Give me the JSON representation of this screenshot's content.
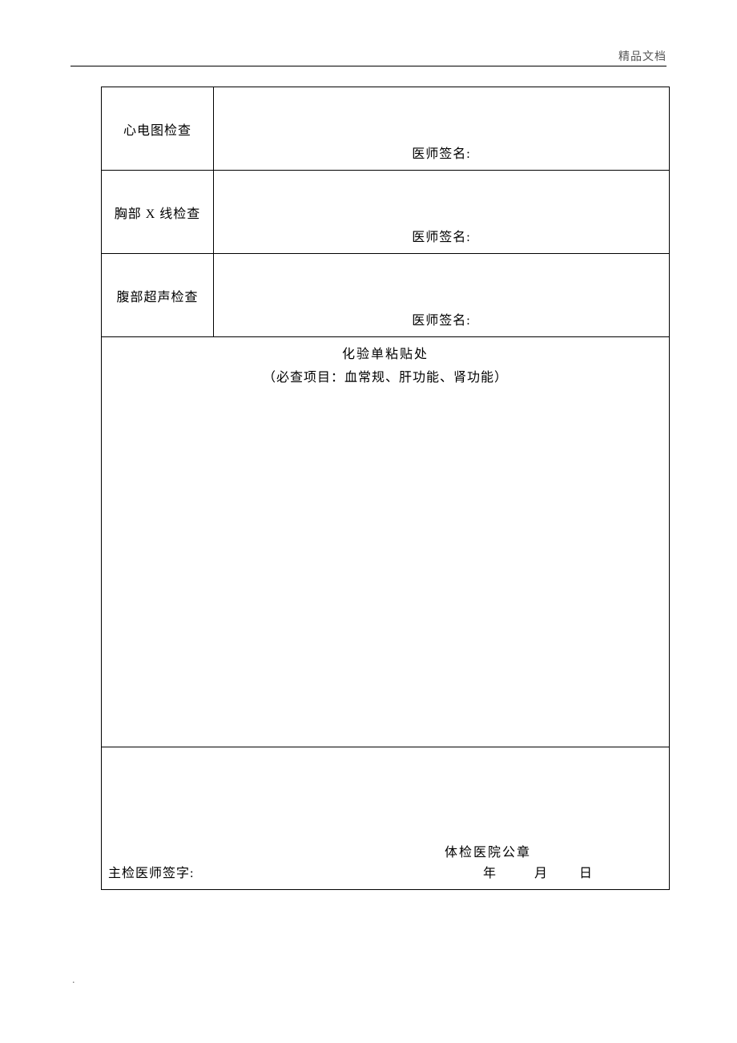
{
  "header": {
    "watermark": "精品文档"
  },
  "exams": [
    {
      "label": "心电图检查",
      "signature_label": "医师签名:"
    },
    {
      "label": "胸部 X 线检查",
      "signature_label": "医师签名:"
    },
    {
      "label": "腹部超声检查",
      "signature_label": "医师签名:"
    }
  ],
  "lab": {
    "title": "化验单粘贴处",
    "subtitle": "（必查项目：血常规、肝功能、肾功能）"
  },
  "footer": {
    "seal_label": "体检医院公章",
    "chief_label": "主检医师签字:",
    "year_label": "年",
    "month_label": "月",
    "day_label": "日"
  },
  "page": {
    "dot": "."
  }
}
